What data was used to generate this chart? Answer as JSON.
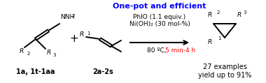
{
  "title": "One-pot and efficient",
  "title_color": "#0000FF",
  "title_fontsize": 8.0,
  "bg_color": "#FFFFFF",
  "reagent_line1": "PhIO (1.1 equiv.)",
  "reagent_line2": "Ni(OH)₂ (30 mol-%)",
  "condition_black": "80 ºC, ",
  "condition_red": "5 min-4 h",
  "examples_line1": "27 examples",
  "examples_line2": "yield up to 91%",
  "label_1a": "1a, 1t-1aa",
  "label_2a": "2a-2s",
  "text_fontsize": 7.0,
  "small_fontsize": 6.5,
  "superscript_fontsize": 5.0
}
